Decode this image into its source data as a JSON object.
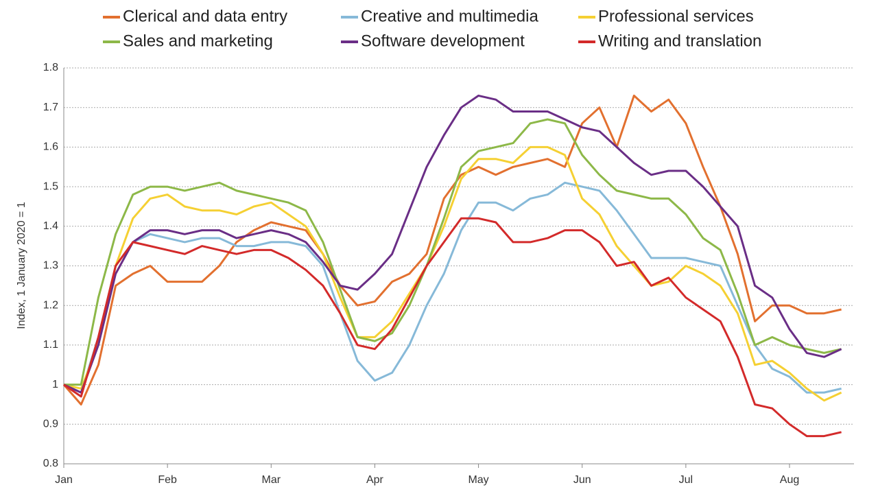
{
  "chart_data": {
    "type": "line",
    "y_label": "Index, 1 January 2020 = 1",
    "categories": [
      "Jan",
      null,
      null,
      null,
      null,
      null,
      "Feb",
      null,
      null,
      null,
      null,
      null,
      "Mar",
      null,
      null,
      null,
      null,
      null,
      "Apr",
      null,
      null,
      null,
      null,
      null,
      "May",
      null,
      null,
      null,
      null,
      null,
      "Jun",
      null,
      null,
      null,
      null,
      null,
      "Jul",
      null,
      null,
      null,
      null,
      null,
      "Aug",
      null,
      null,
      null
    ],
    "series": [
      {
        "name": "Clerical and data entry",
        "color": "#e2702f",
        "values": [
          1.0,
          0.95,
          1.05,
          1.25,
          1.28,
          1.3,
          1.26,
          1.26,
          1.26,
          1.3,
          1.36,
          1.39,
          1.41,
          1.4,
          1.39,
          1.33,
          1.25,
          1.2,
          1.21,
          1.26,
          1.28,
          1.33,
          1.47,
          1.53,
          1.55,
          1.53,
          1.55,
          1.56,
          1.57,
          1.55,
          1.66,
          1.7,
          1.6,
          1.73,
          1.69,
          1.72,
          1.66,
          1.55,
          1.45,
          1.33,
          1.16,
          1.2,
          1.2,
          1.18,
          1.18,
          1.19
        ]
      },
      {
        "name": "Creative and multimedia",
        "color": "#86b9d8",
        "values": [
          1.0,
          0.98,
          1.12,
          1.3,
          1.36,
          1.38,
          1.37,
          1.36,
          1.37,
          1.37,
          1.35,
          1.35,
          1.36,
          1.36,
          1.35,
          1.3,
          1.18,
          1.06,
          1.01,
          1.03,
          1.1,
          1.2,
          1.28,
          1.39,
          1.46,
          1.46,
          1.44,
          1.47,
          1.48,
          1.51,
          1.5,
          1.49,
          1.44,
          1.38,
          1.32,
          1.32,
          1.32,
          1.31,
          1.3,
          1.2,
          1.1,
          1.04,
          1.02,
          0.98,
          0.98,
          0.99
        ]
      },
      {
        "name": "Professional services",
        "color": "#f5d033",
        "values": [
          1.0,
          0.99,
          1.1,
          1.3,
          1.42,
          1.47,
          1.48,
          1.45,
          1.44,
          1.44,
          1.43,
          1.45,
          1.46,
          1.43,
          1.4,
          1.33,
          1.22,
          1.12,
          1.12,
          1.16,
          1.23,
          1.3,
          1.4,
          1.52,
          1.57,
          1.57,
          1.56,
          1.6,
          1.6,
          1.58,
          1.47,
          1.43,
          1.35,
          1.3,
          1.25,
          1.26,
          1.3,
          1.28,
          1.25,
          1.18,
          1.05,
          1.06,
          1.03,
          0.99,
          0.96,
          0.98
        ]
      },
      {
        "name": "Sales and marketing",
        "color": "#8db848",
        "values": [
          1.0,
          1.0,
          1.22,
          1.38,
          1.48,
          1.5,
          1.5,
          1.49,
          1.5,
          1.51,
          1.49,
          1.48,
          1.47,
          1.46,
          1.44,
          1.36,
          1.24,
          1.12,
          1.11,
          1.13,
          1.2,
          1.3,
          1.42,
          1.55,
          1.59,
          1.6,
          1.61,
          1.66,
          1.67,
          1.66,
          1.58,
          1.53,
          1.49,
          1.48,
          1.47,
          1.47,
          1.43,
          1.37,
          1.34,
          1.23,
          1.1,
          1.12,
          1.1,
          1.09,
          1.08,
          1.09
        ]
      },
      {
        "name": "Software development",
        "color": "#6a2e86",
        "values": [
          1.0,
          0.98,
          1.1,
          1.28,
          1.36,
          1.39,
          1.39,
          1.38,
          1.39,
          1.39,
          1.37,
          1.38,
          1.39,
          1.38,
          1.36,
          1.31,
          1.25,
          1.24,
          1.28,
          1.33,
          1.44,
          1.55,
          1.63,
          1.7,
          1.73,
          1.72,
          1.69,
          1.69,
          1.69,
          1.67,
          1.65,
          1.64,
          1.6,
          1.56,
          1.53,
          1.54,
          1.54,
          1.5,
          1.45,
          1.4,
          1.25,
          1.22,
          1.14,
          1.08,
          1.07,
          1.09
        ]
      },
      {
        "name": "Writing and translation",
        "color": "#d32a2a",
        "values": [
          1.0,
          0.97,
          1.12,
          1.3,
          1.36,
          1.35,
          1.34,
          1.33,
          1.35,
          1.34,
          1.33,
          1.34,
          1.34,
          1.32,
          1.29,
          1.25,
          1.18,
          1.1,
          1.09,
          1.14,
          1.22,
          1.3,
          1.36,
          1.42,
          1.42,
          1.41,
          1.36,
          1.36,
          1.37,
          1.39,
          1.39,
          1.36,
          1.3,
          1.31,
          1.25,
          1.27,
          1.22,
          1.19,
          1.16,
          1.07,
          0.95,
          0.94,
          0.9,
          0.87,
          0.87,
          0.88
        ]
      }
    ],
    "ylim": [
      0.8,
      1.8
    ],
    "yticks": [
      0.8,
      0.9,
      1,
      1.1,
      1.2,
      1.3,
      1.4,
      1.5,
      1.6,
      1.7,
      1.8
    ],
    "grid": true
  }
}
